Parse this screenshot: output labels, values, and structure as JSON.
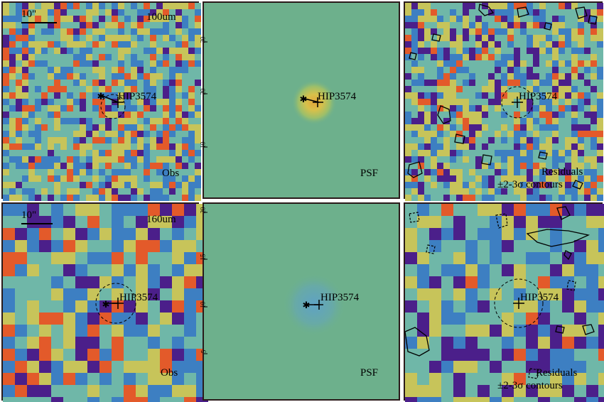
{
  "source": {
    "name": "HIP3574"
  },
  "rows": [
    {
      "band_label": "100um",
      "scale_label": "10\"",
      "psf_axis_ticks": [
        "30",
        "20",
        "10"
      ],
      "panels": [
        {
          "kind": "obs",
          "corner_label": "Obs"
        },
        {
          "kind": "psf",
          "corner_label": "PSF"
        },
        {
          "kind": "residual",
          "corner_label": "Residuals",
          "corner_label_2": "±2-3σ contours"
        }
      ]
    },
    {
      "band_label": "160um",
      "scale_label": "10\"",
      "psf_axis_ticks": [
        "20",
        "15",
        "10",
        "5"
      ],
      "panels": [
        {
          "kind": "obs",
          "corner_label": "Obs"
        },
        {
          "kind": "psf",
          "corner_label": "PSF"
        },
        {
          "kind": "residual",
          "corner_label": "Residuals",
          "corner_label_2": "±2-3σ contours"
        }
      ]
    }
  ],
  "colors": {
    "low": "#4b1f8a",
    "mid_low": "#3d7fc2",
    "mid": "#6fb7a8",
    "mid_high": "#c7c45a",
    "high": "#e35a2a",
    "psf_background": "#6db08c",
    "frame": "#2a1a1a"
  }
}
